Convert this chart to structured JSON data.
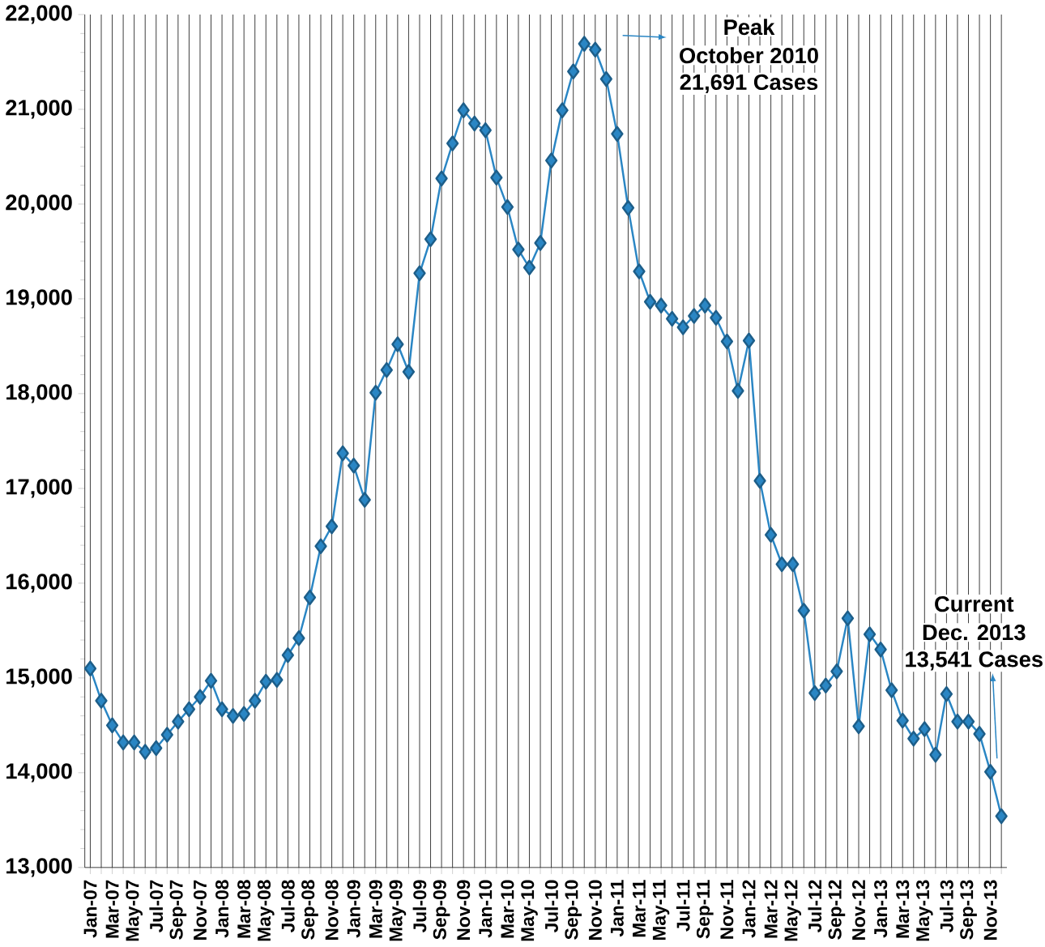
{
  "chart_data": {
    "type": "line",
    "marker": "diamond",
    "line_style": "solid",
    "grid": "x",
    "categories": [
      "Jan-07",
      null,
      "Mar-07",
      null,
      "May-07",
      null,
      "Jul-07",
      null,
      "Sep-07",
      null,
      "Nov-07",
      null,
      "Jan-08",
      null,
      "Mar-08",
      null,
      "May-08",
      null,
      "Jul-08",
      null,
      "Sep-08",
      null,
      "Nov-08",
      null,
      "Jan-09",
      null,
      "Mar-09",
      null,
      "May-09",
      null,
      "Jul-09",
      null,
      "Sep-09",
      null,
      "Nov-09",
      null,
      "Jan-10",
      null,
      "Mar-10",
      null,
      "May-10",
      null,
      "Jul-10",
      null,
      "Sep-10",
      null,
      "Nov-10",
      null,
      "Jan-11",
      null,
      "Mar-11",
      null,
      "May-11",
      null,
      "Jul-11",
      null,
      "Sep-11",
      null,
      "Nov-11",
      null,
      "Jan-12",
      null,
      "Mar-12",
      null,
      "May-12",
      null,
      "Jul-12",
      null,
      "Sep-12",
      null,
      "Nov-12",
      null,
      "Jan-13",
      null,
      "Mar-13",
      null,
      "May-13",
      null,
      "Jul-13",
      null,
      "Sep-13",
      null,
      "Nov-13",
      null
    ],
    "series": [
      {
        "color": "#2a86c4",
        "values": [
          15100,
          14760,
          14500,
          14320,
          14320,
          14220,
          14260,
          14400,
          14540,
          14670,
          14800,
          14970,
          14670,
          14600,
          14620,
          14760,
          14960,
          14980,
          15240,
          15420,
          15850,
          16390,
          16600,
          17370,
          17240,
          16880,
          18010,
          18250,
          18520,
          18230,
          19270,
          19630,
          20270,
          20640,
          20990,
          20850,
          20780,
          20280,
          19970,
          19520,
          19330,
          19590,
          20460,
          20990,
          21400,
          21691,
          21630,
          21320,
          20740,
          19960,
          19290,
          18970,
          18930,
          18790,
          18700,
          18820,
          18930,
          18800,
          18550,
          18030,
          18560,
          17080,
          16510,
          16200,
          16200,
          15710,
          14840,
          14920,
          15070,
          15630,
          14490,
          15460,
          15300,
          14870,
          14550,
          14360,
          14460,
          14190,
          14830,
          14540,
          14540,
          14410,
          14010,
          13541
        ]
      }
    ],
    "ylim": [
      13000,
      22000
    ],
    "yticks": [
      {
        "value": 13000,
        "label": "13,000"
      },
      {
        "value": 14000,
        "label": "14,000"
      },
      {
        "value": 15000,
        "label": "15,000"
      },
      {
        "value": 16000,
        "label": "16,000"
      },
      {
        "value": 17000,
        "label": "17,000"
      },
      {
        "value": 18000,
        "label": "18,000"
      },
      {
        "value": 19000,
        "label": "19,000"
      },
      {
        "value": 20000,
        "label": "20,000"
      },
      {
        "value": 21000,
        "label": "21,000"
      },
      {
        "value": 22000,
        "label": "22,000"
      }
    ],
    "annotations": [
      "Peak",
      "October 2010",
      "21,691 Cases",
      "Current",
      "Dec. 2013",
      "13,541 Cases"
    ]
  }
}
